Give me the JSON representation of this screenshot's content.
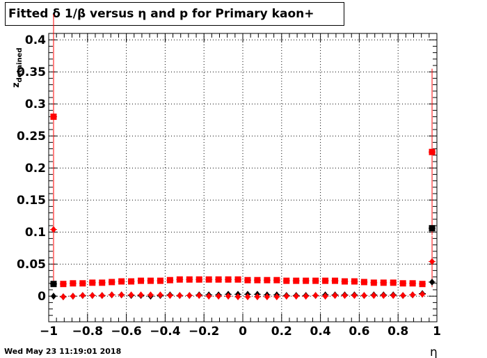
{
  "title": "Fitted δ 1/β versus η and p for Primary kaon+",
  "timestamp": "Wed May 23 11:19:01 2018",
  "chart_data": {
    "type": "scatter",
    "xlabel": "η",
    "ylabel": "z_detained",
    "xlim": [
      -1,
      1
    ],
    "ylim": [
      -0.04,
      0.41
    ],
    "grid": true,
    "x_ticks": [
      -1,
      -0.8,
      -0.6,
      -0.4,
      -0.2,
      0,
      0.2,
      0.4,
      0.6,
      0.8,
      1
    ],
    "x_tick_labels": [
      "−1",
      "−0.8",
      "−0.6",
      "−0.4",
      "−0.2",
      "0",
      "0.2",
      "0.4",
      "0.6",
      "0.8",
      "1"
    ],
    "y_ticks": [
      0,
      0.05,
      0.1,
      0.15,
      0.2,
      0.25,
      0.3,
      0.35,
      0.4
    ],
    "y_tick_labels": [
      "0",
      "0.05",
      "0.1",
      "0.15",
      "0.2",
      "0.25",
      "0.3",
      "0.35",
      "0.4"
    ],
    "series": [
      {
        "color": "#000000",
        "marker": "square",
        "x": [
          -0.975,
          0.975
        ],
        "y": [
          0.019,
          0.106
        ],
        "err": [
          0.0,
          0.0
        ]
      },
      {
        "color": "#000000",
        "marker": "diamond",
        "x": [
          -0.975,
          -0.925,
          -0.875,
          -0.825,
          -0.775,
          -0.725,
          -0.675,
          -0.625,
          -0.575,
          -0.525,
          -0.475,
          -0.425,
          -0.375,
          -0.325,
          -0.275,
          -0.225,
          -0.175,
          -0.125,
          -0.075,
          -0.025,
          0.025,
          0.075,
          0.125,
          0.175,
          0.225,
          0.275,
          0.325,
          0.375,
          0.425,
          0.475,
          0.525,
          0.575,
          0.625,
          0.675,
          0.725,
          0.775,
          0.825,
          0.875,
          0.925,
          0.975
        ],
        "y": [
          0.0,
          -0.001,
          0.0,
          0.001,
          0.001,
          0.001,
          0.002,
          0.002,
          0.001,
          0.001,
          0.0,
          0.001,
          0.002,
          0.001,
          0.001,
          0.002,
          0.002,
          0.002,
          0.003,
          0.003,
          0.003,
          0.003,
          0.002,
          0.002,
          0.001,
          0.001,
          0.001,
          0.001,
          0.002,
          0.002,
          0.002,
          0.002,
          0.001,
          0.002,
          0.002,
          0.002,
          0.001,
          0.002,
          0.004,
          0.022
        ],
        "err": [
          0.005,
          0,
          0,
          0,
          0,
          0,
          0,
          0,
          0,
          0,
          0,
          0,
          0,
          0,
          0,
          0,
          0,
          0,
          0,
          0,
          0,
          0,
          0,
          0,
          0,
          0,
          0,
          0,
          0,
          0,
          0,
          0,
          0,
          0,
          0,
          0,
          0,
          0,
          0,
          0.003
        ]
      },
      {
        "color": "#ff0000",
        "marker": "square",
        "x": [
          -0.975,
          -0.925,
          -0.875,
          -0.825,
          -0.775,
          -0.725,
          -0.675,
          -0.625,
          -0.575,
          -0.525,
          -0.475,
          -0.425,
          -0.375,
          -0.325,
          -0.275,
          -0.225,
          -0.175,
          -0.125,
          -0.075,
          -0.025,
          0.025,
          0.075,
          0.125,
          0.175,
          0.225,
          0.275,
          0.325,
          0.375,
          0.425,
          0.475,
          0.525,
          0.575,
          0.625,
          0.675,
          0.725,
          0.775,
          0.825,
          0.875,
          0.925,
          0.975
        ],
        "y": [
          0.28,
          0.019,
          0.02,
          0.02,
          0.021,
          0.021,
          0.022,
          0.023,
          0.023,
          0.024,
          0.024,
          0.024,
          0.025,
          0.026,
          0.026,
          0.026,
          0.026,
          0.026,
          0.026,
          0.026,
          0.025,
          0.025,
          0.025,
          0.025,
          0.024,
          0.024,
          0.024,
          0.024,
          0.024,
          0.024,
          0.023,
          0.023,
          0.022,
          0.021,
          0.021,
          0.021,
          0.02,
          0.02,
          0.019,
          0.225
        ],
        "err": [
          0.16,
          0,
          0,
          0,
          0,
          0,
          0,
          0,
          0,
          0,
          0,
          0,
          0,
          0,
          0,
          0,
          0,
          0,
          0,
          0,
          0,
          0,
          0,
          0,
          0,
          0,
          0,
          0,
          0,
          0,
          0,
          0,
          0,
          0,
          0,
          0,
          0,
          0,
          0,
          0.13
        ]
      },
      {
        "color": "#ff0000",
        "marker": "diamond",
        "x": [
          -0.975,
          -0.925,
          -0.875,
          -0.825,
          -0.775,
          -0.725,
          -0.675,
          -0.625,
          -0.575,
          -0.525,
          -0.475,
          -0.425,
          -0.375,
          -0.325,
          -0.275,
          -0.225,
          -0.175,
          -0.125,
          -0.075,
          -0.025,
          0.025,
          0.075,
          0.125,
          0.175,
          0.225,
          0.275,
          0.325,
          0.375,
          0.425,
          0.475,
          0.525,
          0.575,
          0.625,
          0.675,
          0.725,
          0.775,
          0.825,
          0.875,
          0.925,
          0.975
        ],
        "y": [
          0.104,
          -0.001,
          0.0,
          0.001,
          0.001,
          0.001,
          0.002,
          0.002,
          0.002,
          0.002,
          0.002,
          0.002,
          0.001,
          0.001,
          0.001,
          0.001,
          0.0,
          0.0,
          0.0,
          -0.001,
          -0.001,
          -0.001,
          -0.001,
          -0.001,
          0.0,
          0.0,
          0.0,
          0.001,
          0.0,
          0.001,
          0.001,
          0.001,
          0.001,
          0.001,
          0.001,
          0.001,
          0.001,
          0.002,
          0.003,
          0.054
        ],
        "err": [
          0.08,
          0,
          0,
          0,
          0,
          0,
          0,
          0,
          0,
          0,
          0,
          0,
          0,
          0,
          0,
          0,
          0,
          0,
          0,
          0,
          0,
          0,
          0,
          0,
          0,
          0,
          0,
          0,
          0,
          0,
          0,
          0,
          0,
          0,
          0,
          0,
          0,
          0,
          0,
          0.04
        ]
      }
    ]
  }
}
